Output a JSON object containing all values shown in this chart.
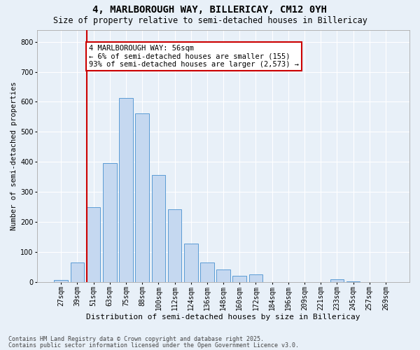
{
  "title1": "4, MARLBOROUGH WAY, BILLERICAY, CM12 0YH",
  "title2": "Size of property relative to semi-detached houses in Billericay",
  "xlabel": "Distribution of semi-detached houses by size in Billericay",
  "ylabel": "Number of semi-detached properties",
  "bin_labels": [
    "27sqm",
    "39sqm",
    "51sqm",
    "63sqm",
    "75sqm",
    "88sqm",
    "100sqm",
    "112sqm",
    "124sqm",
    "136sqm",
    "148sqm",
    "160sqm",
    "172sqm",
    "184sqm",
    "196sqm",
    "209sqm",
    "221sqm",
    "233sqm",
    "245sqm",
    "257sqm",
    "269sqm"
  ],
  "bar_values": [
    5,
    65,
    248,
    395,
    612,
    562,
    355,
    242,
    127,
    65,
    42,
    20,
    25,
    0,
    0,
    0,
    0,
    8,
    2,
    0,
    0
  ],
  "bar_color": "#c5d8f0",
  "bar_edge_color": "#5b9bd5",
  "background_color": "#e8f0f8",
  "grid_color": "#ffffff",
  "vline_x_index": 2,
  "vline_color": "#cc0000",
  "annotation_text": "4 MARLBOROUGH WAY: 56sqm\n← 6% of semi-detached houses are smaller (155)\n93% of semi-detached houses are larger (2,573) →",
  "annotation_box_color": "#ffffff",
  "annotation_box_edge_color": "#cc0000",
  "ylim": [
    0,
    840
  ],
  "yticks": [
    0,
    100,
    200,
    300,
    400,
    500,
    600,
    700,
    800
  ],
  "footnote1": "Contains HM Land Registry data © Crown copyright and database right 2025.",
  "footnote2": "Contains public sector information licensed under the Open Government Licence v3.0.",
  "title1_fontsize": 10,
  "title2_fontsize": 8.5,
  "xlabel_fontsize": 8,
  "ylabel_fontsize": 7.5,
  "tick_fontsize": 7,
  "annotation_fontsize": 7.5,
  "footnote_fontsize": 6
}
